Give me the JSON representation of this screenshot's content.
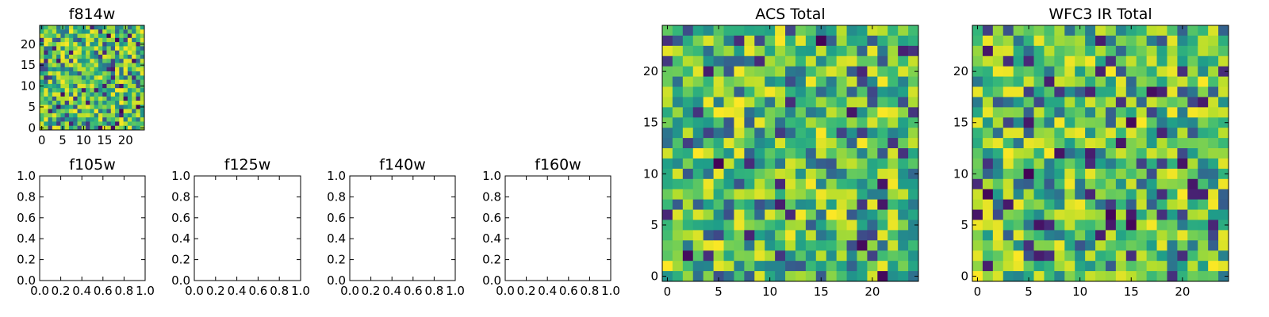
{
  "chart_data": [
    {
      "type": "heatmap",
      "title": "f814w",
      "rows": 25,
      "cols": 25,
      "xlim": [
        -0.5,
        24.5
      ],
      "ylim": [
        -0.5,
        24.5
      ],
      "xticks": [
        0,
        5,
        10,
        15,
        20
      ],
      "yticks": [
        0,
        5,
        10,
        15,
        20
      ],
      "colormap": "viridis",
      "values": "pseudo-random image (per-pixel values not readable)"
    },
    {
      "type": "scatter",
      "title": "f105w",
      "xlim": [
        0,
        1
      ],
      "ylim": [
        0,
        1
      ],
      "xticks": [
        "0.0",
        "0.2",
        "0.4",
        "0.6",
        "0.8",
        "1.0"
      ],
      "yticks": [
        "0.0",
        "0.2",
        "0.4",
        "0.6",
        "0.8",
        "1.0"
      ],
      "values": []
    },
    {
      "type": "scatter",
      "title": "f125w",
      "xlim": [
        0,
        1
      ],
      "ylim": [
        0,
        1
      ],
      "xticks": [
        "0.0",
        "0.2",
        "0.4",
        "0.6",
        "0.8",
        "1.0"
      ],
      "yticks": [
        "0.0",
        "0.2",
        "0.4",
        "0.6",
        "0.8",
        "1.0"
      ],
      "values": []
    },
    {
      "type": "scatter",
      "title": "f140w",
      "xlim": [
        0,
        1
      ],
      "ylim": [
        0,
        1
      ],
      "xticks": [
        "0.0",
        "0.2",
        "0.4",
        "0.6",
        "0.8",
        "1.0"
      ],
      "yticks": [
        "0.0",
        "0.2",
        "0.4",
        "0.6",
        "0.8",
        "1.0"
      ],
      "values": []
    },
    {
      "type": "scatter",
      "title": "f160w",
      "xlim": [
        0,
        1
      ],
      "ylim": [
        0,
        1
      ],
      "xticks": [
        "0.0",
        "0.2",
        "0.4",
        "0.6",
        "0.8",
        "1.0"
      ],
      "yticks": [
        "0.0",
        "0.2",
        "0.4",
        "0.6",
        "0.8",
        "1.0"
      ],
      "values": []
    },
    {
      "type": "heatmap",
      "title": "ACS Total",
      "rows": 25,
      "cols": 25,
      "xlim": [
        -0.5,
        24.5
      ],
      "ylim": [
        -0.5,
        24.5
      ],
      "xticks": [
        0,
        5,
        10,
        15,
        20
      ],
      "yticks": [
        0,
        5,
        10,
        15,
        20
      ],
      "colormap": "viridis",
      "values": "pseudo-random image (per-pixel values not readable)"
    },
    {
      "type": "heatmap",
      "title": "WFC3 IR Total",
      "rows": 25,
      "cols": 25,
      "xlim": [
        -0.5,
        24.5
      ],
      "ylim": [
        -0.5,
        24.5
      ],
      "xticks": [
        0,
        5,
        10,
        15,
        20
      ],
      "yticks": [
        0,
        5,
        10,
        15,
        20
      ],
      "colormap": "viridis",
      "values": "pseudo-random image (per-pixel values not readable)"
    }
  ]
}
